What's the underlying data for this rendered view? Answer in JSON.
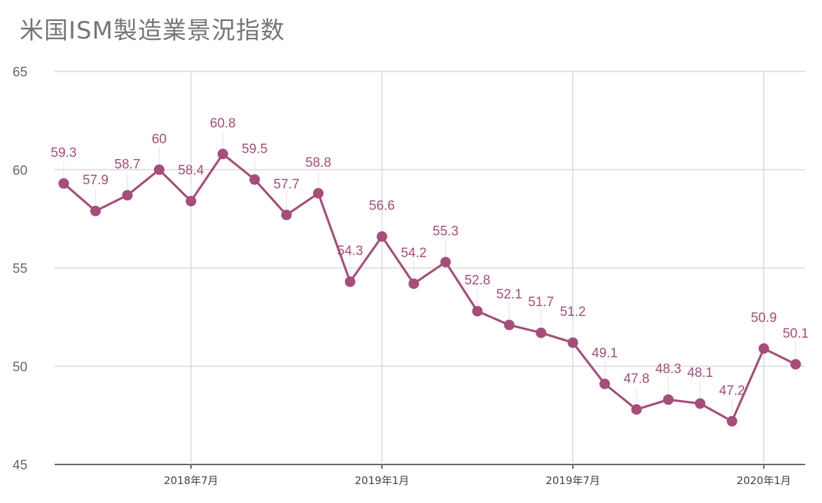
{
  "chart_data": {
    "type": "line",
    "title": "米国ISM製造業景況指数",
    "xlabel": "",
    "ylabel": "",
    "ylim": [
      45,
      65
    ],
    "yticks": [
      "65",
      "60",
      "55",
      "50",
      "45"
    ],
    "x": [
      "2018-03",
      "2018-04",
      "2018-05",
      "2018-06",
      "2018-07",
      "2018-08",
      "2018-09",
      "2018-10",
      "2018-11",
      "2018-12",
      "2019-01",
      "2019-02",
      "2019-03",
      "2019-04",
      "2019-05",
      "2019-06",
      "2019-07",
      "2019-08",
      "2019-09",
      "2019-10",
      "2019-11",
      "2019-12",
      "2020-01",
      "2020-02"
    ],
    "xtick_labels": [
      {
        "x": "2018-07",
        "label": "2018年7月"
      },
      {
        "x": "2019-01",
        "label": "2019年1月"
      },
      {
        "x": "2019-07",
        "label": "2019年7月"
      },
      {
        "x": "2020-01",
        "label": "2020年1月"
      }
    ],
    "series": [
      {
        "name": "",
        "color": "#a64d79",
        "values": [
          59.3,
          57.9,
          58.7,
          60,
          58.4,
          60.8,
          59.5,
          57.7,
          58.8,
          54.3,
          56.6,
          54.2,
          55.3,
          52.8,
          52.1,
          51.7,
          51.2,
          49.1,
          47.8,
          48.3,
          48.1,
          47.2,
          50.9,
          50.1
        ],
        "labels": [
          "59.3",
          "57.9",
          "58.7",
          "60",
          "58.4",
          "60.8",
          "59.5",
          "57.7",
          "58.8",
          "54.3",
          "56.6",
          "54.2",
          "55.3",
          "52.8",
          "52.1",
          "51.7",
          "51.2",
          "49.1",
          "47.8",
          "48.3",
          "48.1",
          "47.2",
          "50.9",
          "50.1"
        ]
      }
    ],
    "grid": true,
    "legend": "none"
  }
}
